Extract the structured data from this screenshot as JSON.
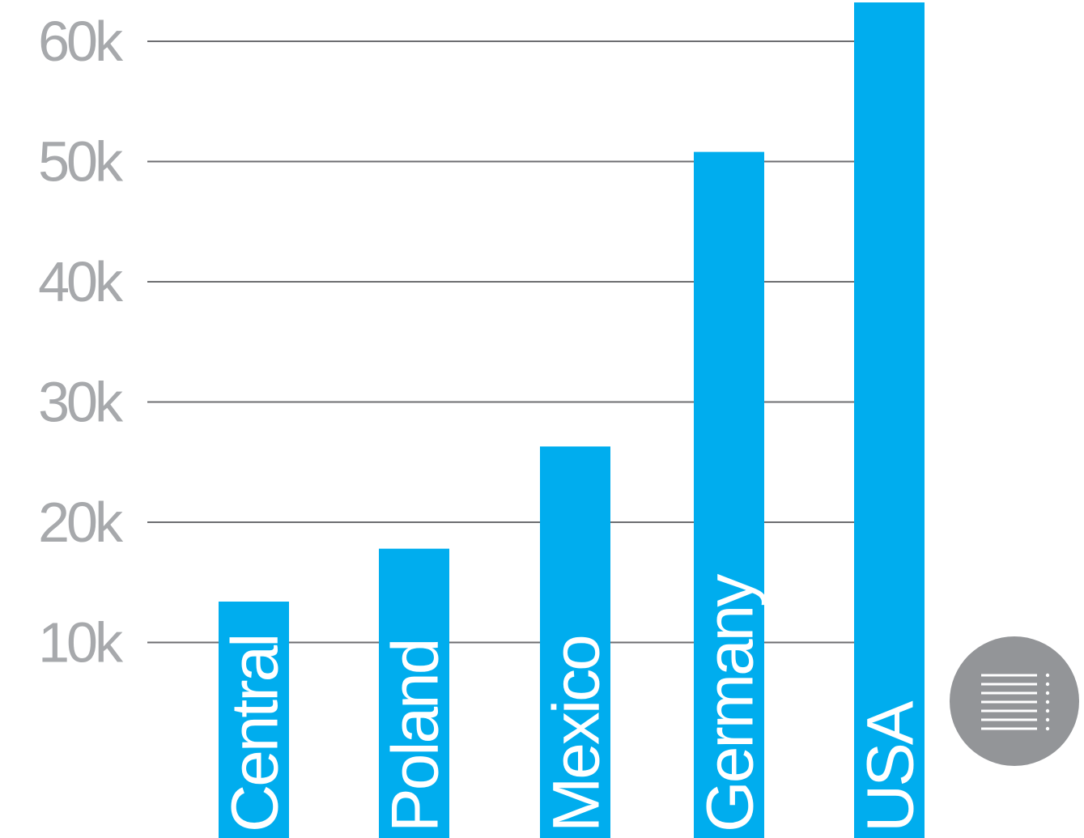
{
  "chart_data": {
    "type": "bar",
    "title": "",
    "xlabel": "",
    "ylabel": "",
    "categories": [
      "Central",
      "Poland",
      "Mexico",
      "Germany",
      "USA"
    ],
    "values": [
      13400,
      17800,
      26300,
      50800,
      64800
    ],
    "ylim": [
      0,
      65000
    ],
    "yticks": [
      10000,
      20000,
      30000,
      40000,
      50000,
      60000
    ],
    "ytick_labels": [
      "10k",
      "20k",
      "30k",
      "40k",
      "50k",
      "60k"
    ],
    "grid": true,
    "labels_inside_bars": true
  },
  "colors": {
    "bar": "#00adee",
    "grid": "#6d6e71",
    "tick_label": "#a7a9ac",
    "bar_label": "#ffffff",
    "menu_button": "#939598",
    "menu_icon": "#ffffff"
  },
  "menu_button": {
    "icon": "list-menu-icon"
  }
}
